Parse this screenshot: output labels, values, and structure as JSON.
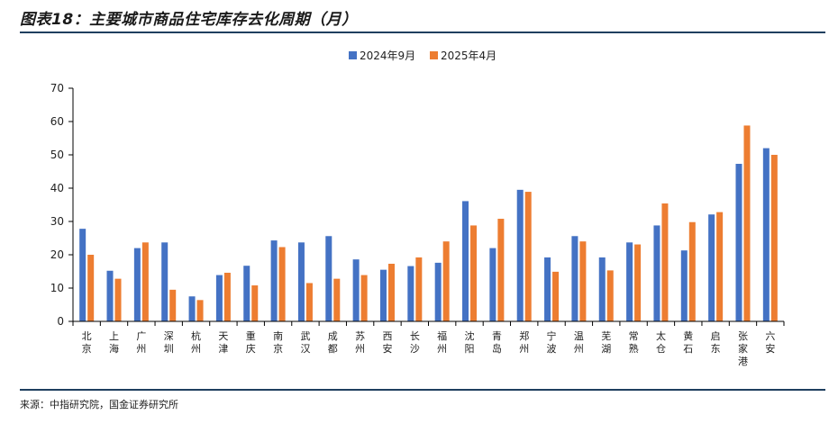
{
  "header": {
    "title": "图表18：主要城市商品住宅库存去化周期（月）"
  },
  "footer": {
    "source": "来源：中指研究院，国金证券研究所"
  },
  "colors": {
    "series1": "#4472c4",
    "series2": "#ed7d31",
    "rule": "#1f3f5f"
  },
  "chart_data": {
    "type": "bar",
    "title": "主要城市商品住宅库存去化周期（月）",
    "xlabel": "",
    "ylabel": "",
    "ylim": [
      0,
      70
    ],
    "yticks": [
      0,
      10,
      20,
      30,
      40,
      50,
      60,
      70
    ],
    "grid": false,
    "legend_position": "top-center",
    "categories": [
      "北京",
      "上海",
      "广州",
      "深圳",
      "杭州",
      "天津",
      "重庆",
      "南京",
      "武汉",
      "成都",
      "苏州",
      "西安",
      "长沙",
      "福州",
      "沈阳",
      "青岛",
      "郑州",
      "宁波",
      "温州",
      "芜湖",
      "常熟",
      "太仓",
      "黄石",
      "启东",
      "张家港",
      "六安"
    ],
    "series": [
      {
        "name": "2024年9月",
        "values": [
          27.8,
          15.2,
          22.0,
          23.7,
          7.5,
          13.9,
          16.7,
          24.3,
          23.7,
          25.6,
          18.6,
          15.5,
          16.6,
          17.6,
          36.1,
          22.0,
          39.5,
          19.2,
          25.6,
          19.2,
          23.7,
          28.8,
          21.3,
          32.1,
          47.3,
          52.0
        ]
      },
      {
        "name": "2025年4月",
        "values": [
          20.0,
          12.8,
          23.7,
          9.5,
          6.4,
          14.6,
          10.8,
          22.3,
          11.5,
          12.8,
          13.9,
          17.3,
          19.2,
          24.0,
          28.8,
          30.8,
          38.9,
          14.9,
          24.0,
          15.3,
          23.1,
          35.4,
          29.8,
          32.8,
          58.8,
          50.0
        ]
      }
    ]
  }
}
